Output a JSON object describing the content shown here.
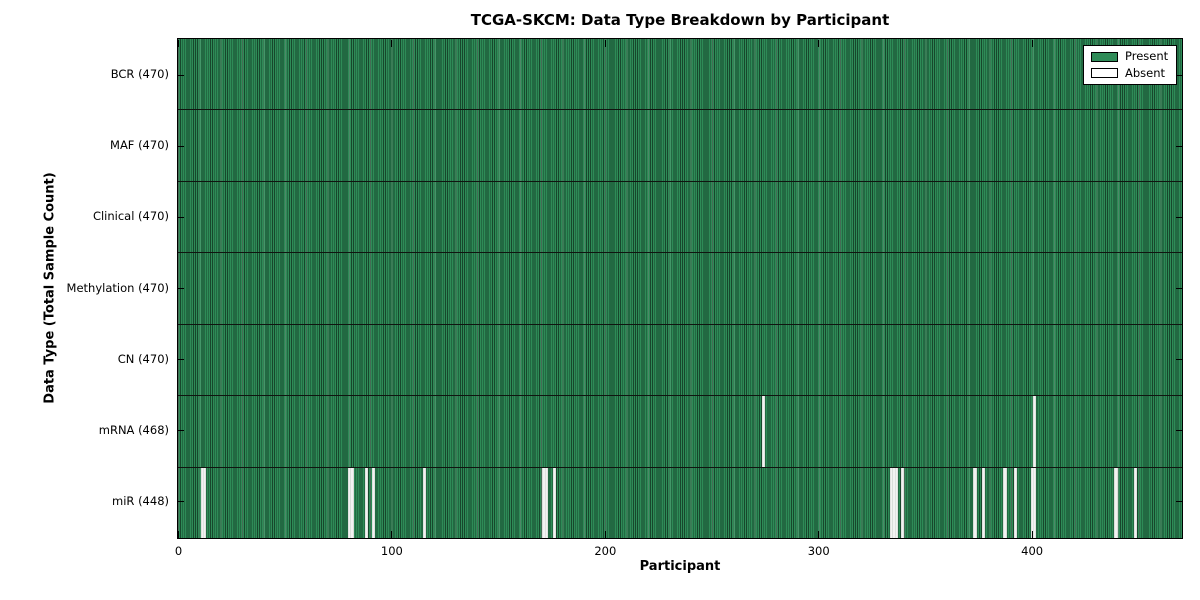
{
  "chart_data": {
    "type": "heatmap",
    "title": "TCGA-SKCM: Data Type Breakdown by Participant",
    "xlabel": "Participant",
    "ylabel": "Data Type (Total Sample Count)",
    "xlim": [
      0,
      470
    ],
    "x_ticks": [
      0,
      100,
      200,
      300,
      400
    ],
    "n_participants": 470,
    "grid": false,
    "legend_position": "upper right",
    "legend": [
      {
        "label": "Present",
        "color": "#2e8b57"
      },
      {
        "label": "Absent",
        "color": "#ffffff"
      }
    ],
    "colors": {
      "present": "#2e8b57",
      "bar_edge": "#17472c",
      "absent_gap": "#f2f2f2",
      "frame": "#000000"
    },
    "rows": [
      {
        "name": "BCR",
        "label": "BCR (470)",
        "total_samples": 470,
        "absent_participants": []
      },
      {
        "name": "MAF",
        "label": "MAF (470)",
        "total_samples": 470,
        "absent_participants": []
      },
      {
        "name": "Clinical",
        "label": "Clinical (470)",
        "total_samples": 470,
        "absent_participants": []
      },
      {
        "name": "Methylation",
        "label": "Methylation (470)",
        "total_samples": 470,
        "absent_participants": []
      },
      {
        "name": "CN",
        "label": "CN (470)",
        "total_samples": 470,
        "absent_participants": []
      },
      {
        "name": "mRNA",
        "label": "mRNA (468)",
        "total_samples": 468,
        "absent_participants": [
          274,
          401
        ]
      },
      {
        "name": "miR",
        "label": "miR (448)",
        "total_samples": 448,
        "absent_participants": [
          11,
          12,
          80,
          81,
          88,
          91,
          115,
          171,
          172,
          176,
          334,
          335,
          336,
          339,
          373,
          377,
          387,
          392,
          400,
          401,
          439,
          448
        ]
      }
    ]
  }
}
